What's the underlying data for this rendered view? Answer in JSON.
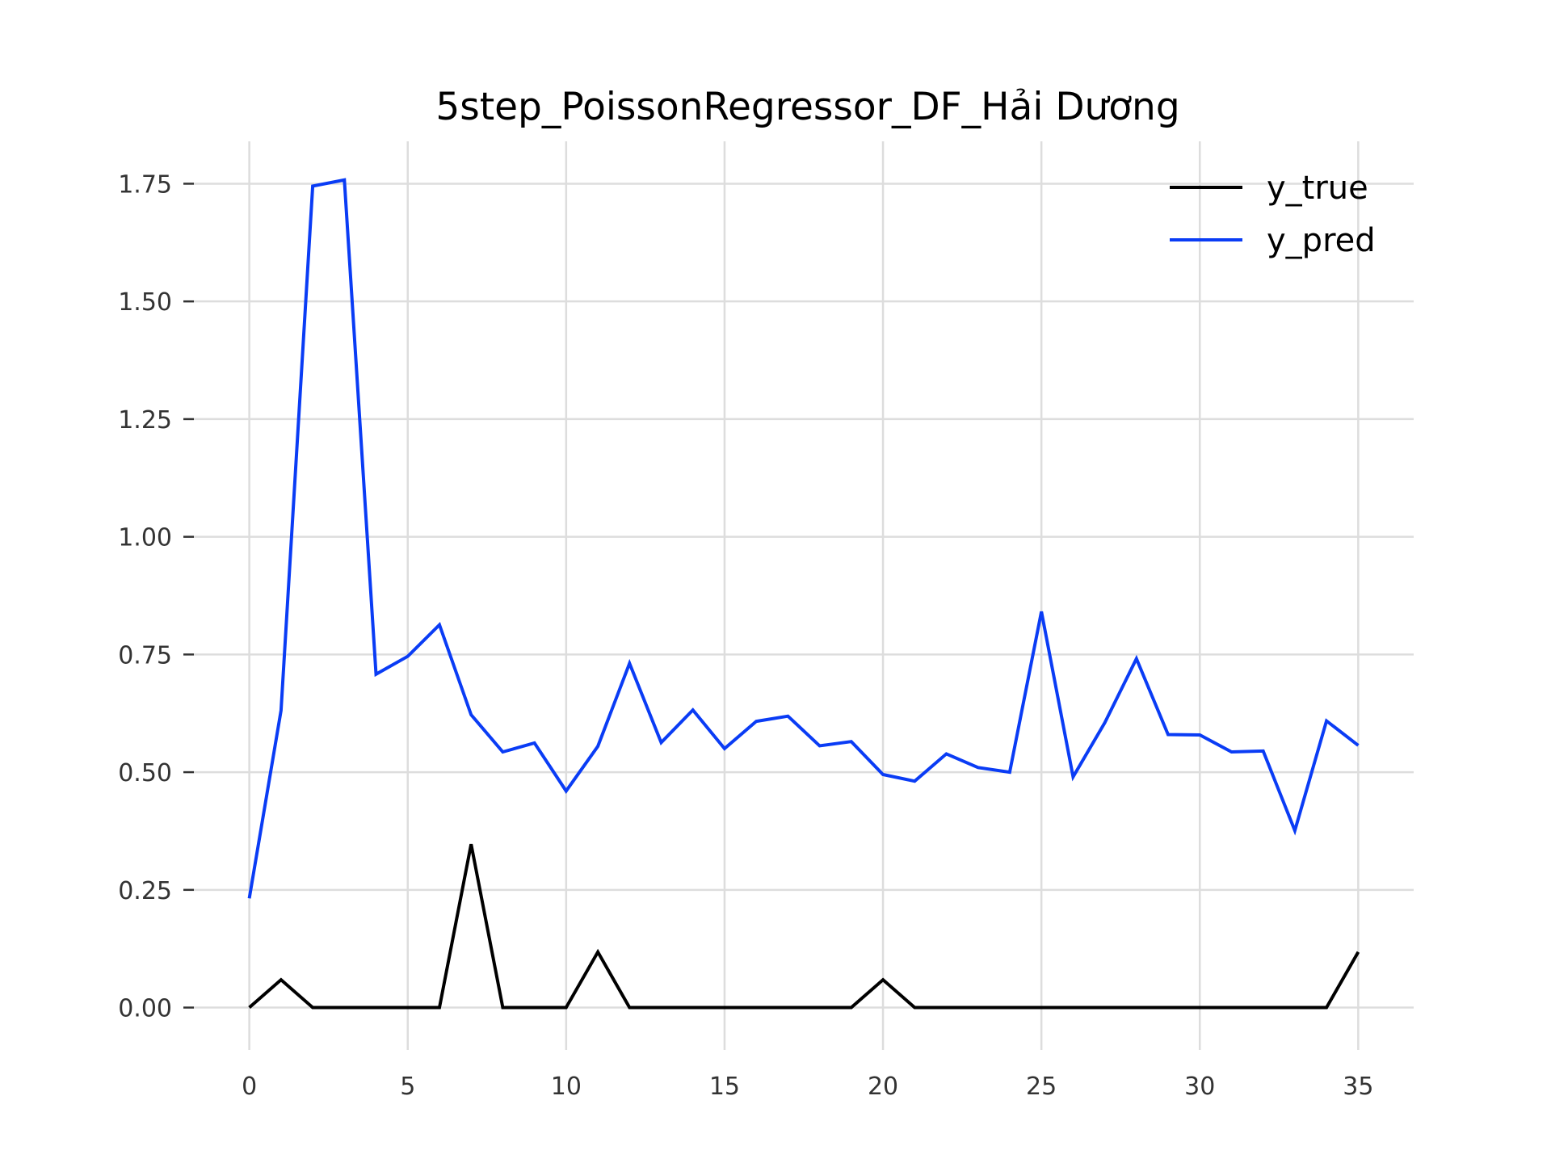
{
  "chart_data": {
    "type": "line",
    "title": "5step_PoissonRegressor_DF_Hải Dương",
    "xlabel": "",
    "ylabel": "",
    "xlim": [
      -1.75,
      36.75
    ],
    "ylim": [
      -0.09,
      1.84
    ],
    "grid": true,
    "legend_position": "top-right",
    "x_ticks": [
      0,
      5,
      10,
      15,
      20,
      25,
      30,
      35
    ],
    "x_tick_labels": [
      "0",
      "5",
      "10",
      "15",
      "20",
      "25",
      "30",
      "35"
    ],
    "y_ticks": [
      0,
      0.25,
      0.5,
      0.75,
      1.0,
      1.25,
      1.5,
      1.75
    ],
    "y_tick_labels": [
      "0.00",
      "0.25",
      "0.50",
      "0.75",
      "1.00",
      "1.25",
      "1.50",
      "1.75"
    ],
    "x": [
      0,
      1,
      2,
      3,
      4,
      5,
      6,
      7,
      8,
      9,
      10,
      11,
      12,
      13,
      14,
      15,
      16,
      17,
      18,
      19,
      20,
      21,
      22,
      23,
      24,
      25,
      26,
      27,
      28,
      29,
      30,
      31,
      32,
      33,
      34,
      35
    ],
    "series": [
      {
        "name": "y_true",
        "color": "#000000",
        "values": [
          0,
          0.059,
          0,
          0,
          0,
          0,
          0,
          0.347,
          0,
          0,
          0,
          0.118,
          0,
          0,
          0,
          0,
          0,
          0,
          0,
          0,
          0.059,
          0,
          0,
          0,
          0,
          0,
          0,
          0,
          0,
          0,
          0,
          0,
          0,
          0,
          0,
          0.118
        ]
      },
      {
        "name": "y_pred",
        "color": "#0a3cf5",
        "values": [
          0.232,
          0.631,
          1.745,
          1.758,
          0.708,
          0.746,
          0.813,
          0.622,
          0.543,
          0.562,
          0.46,
          0.555,
          0.731,
          0.563,
          0.632,
          0.55,
          0.608,
          0.619,
          0.556,
          0.565,
          0.495,
          0.481,
          0.539,
          0.51,
          0.5,
          0.841,
          0.49,
          0.605,
          0.741,
          0.58,
          0.579,
          0.543,
          0.545,
          0.376,
          0.609,
          0.557
        ]
      }
    ]
  }
}
